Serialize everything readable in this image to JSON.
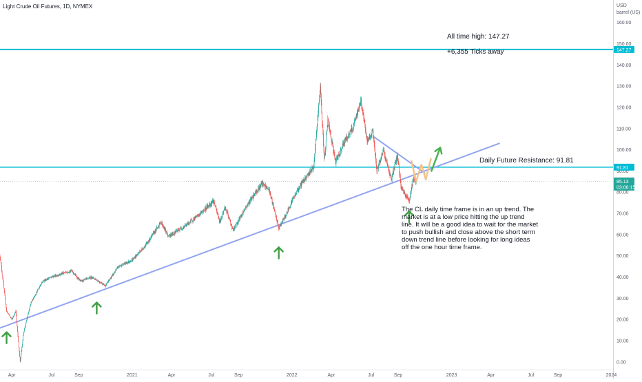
{
  "header": {
    "symbol_title": "Light Crude Oil Futures, 1D, NYMEX"
  },
  "price_axis": {
    "currency": "USD",
    "unit": "barrel (US)"
  },
  "chart_data": {
    "type": "candlestick",
    "title": "Light Crude Oil Futures, 1D, NYMEX",
    "xlabel": "",
    "ylabel": "",
    "ylim": [
      -2,
      168
    ],
    "xlim": [
      "2020-03-05",
      "2024-01-05"
    ],
    "y_ticks": [
      "0.00",
      "10.00",
      "20.00",
      "30.00",
      "40.00",
      "50.00",
      "60.00",
      "70.00",
      "80.00",
      "90.00",
      "100.00",
      "110.00",
      "120.00",
      "130.00",
      "140.00",
      "150.00",
      "160.00"
    ],
    "x_ticks": [
      {
        "date": "2020-04-01",
        "label": "Apr"
      },
      {
        "date": "2020-07-01",
        "label": "Jul"
      },
      {
        "date": "2020-09-01",
        "label": "Sep"
      },
      {
        "date": "2021-01-01",
        "label": "2021"
      },
      {
        "date": "2021-04-01",
        "label": "Apr"
      },
      {
        "date": "2021-07-01",
        "label": "Jul"
      },
      {
        "date": "2021-09-01",
        "label": "Sep"
      },
      {
        "date": "2022-01-01",
        "label": "2022"
      },
      {
        "date": "2022-04-01",
        "label": "Apr"
      },
      {
        "date": "2022-07-01",
        "label": "Jul"
      },
      {
        "date": "2022-09-01",
        "label": "Sep"
      },
      {
        "date": "2023-01-01",
        "label": "2023"
      },
      {
        "date": "2023-04-01",
        "label": "Apr"
      },
      {
        "date": "2023-07-01",
        "label": "Jul"
      },
      {
        "date": "2023-09-01",
        "label": "Sep"
      },
      {
        "date": "2024-01-01",
        "label": "2024"
      }
    ],
    "grid": false,
    "colors": {
      "up": "#26a69a",
      "down": "#ef5350",
      "wick": "#131722"
    },
    "price_path": [
      {
        "date": "2020-03-05",
        "price": 50
      },
      {
        "date": "2020-03-12",
        "price": 38
      },
      {
        "date": "2020-03-20",
        "price": 24
      },
      {
        "date": "2020-04-01",
        "price": 20
      },
      {
        "date": "2020-04-10",
        "price": 24
      },
      {
        "date": "2020-04-20",
        "price": 0
      },
      {
        "date": "2020-04-28",
        "price": 14
      },
      {
        "date": "2020-05-15",
        "price": 28
      },
      {
        "date": "2020-06-10",
        "price": 38
      },
      {
        "date": "2020-07-01",
        "price": 40
      },
      {
        "date": "2020-08-15",
        "price": 43
      },
      {
        "date": "2020-09-05",
        "price": 38
      },
      {
        "date": "2020-10-01",
        "price": 40
      },
      {
        "date": "2020-11-01",
        "price": 36
      },
      {
        "date": "2020-12-01",
        "price": 45
      },
      {
        "date": "2021-01-01",
        "price": 48
      },
      {
        "date": "2021-02-01",
        "price": 55
      },
      {
        "date": "2021-03-08",
        "price": 66
      },
      {
        "date": "2021-03-25",
        "price": 59
      },
      {
        "date": "2021-05-01",
        "price": 64
      },
      {
        "date": "2021-06-01",
        "price": 69
      },
      {
        "date": "2021-07-06",
        "price": 76
      },
      {
        "date": "2021-07-20",
        "price": 66
      },
      {
        "date": "2021-08-01",
        "price": 73
      },
      {
        "date": "2021-08-20",
        "price": 62
      },
      {
        "date": "2021-09-15",
        "price": 72
      },
      {
        "date": "2021-10-10",
        "price": 80
      },
      {
        "date": "2021-10-25",
        "price": 84
      },
      {
        "date": "2021-11-10",
        "price": 81
      },
      {
        "date": "2021-11-26",
        "price": 68
      },
      {
        "date": "2021-12-02",
        "price": 63
      },
      {
        "date": "2021-12-20",
        "price": 70
      },
      {
        "date": "2022-01-01",
        "price": 76
      },
      {
        "date": "2022-01-25",
        "price": 85
      },
      {
        "date": "2022-02-20",
        "price": 92
      },
      {
        "date": "2022-03-07",
        "price": 130
      },
      {
        "date": "2022-03-16",
        "price": 95
      },
      {
        "date": "2022-03-24",
        "price": 114
      },
      {
        "date": "2022-04-11",
        "price": 94
      },
      {
        "date": "2022-05-01",
        "price": 104
      },
      {
        "date": "2022-05-20",
        "price": 110
      },
      {
        "date": "2022-06-08",
        "price": 123
      },
      {
        "date": "2022-06-22",
        "price": 104
      },
      {
        "date": "2022-07-05",
        "price": 109
      },
      {
        "date": "2022-07-14",
        "price": 90
      },
      {
        "date": "2022-07-29",
        "price": 100
      },
      {
        "date": "2022-08-16",
        "price": 86
      },
      {
        "date": "2022-08-30",
        "price": 97
      },
      {
        "date": "2022-09-08",
        "price": 82
      },
      {
        "date": "2022-09-26",
        "price": 76
      },
      {
        "date": "2022-10-05",
        "price": 86
      },
      {
        "date": "2022-10-12",
        "price": 85.13
      }
    ],
    "current_price": {
      "value": 85.13,
      "label": "85.13",
      "timer": "03:06:15",
      "color": "#26a69a"
    },
    "horizontal_lines": [
      {
        "name": "All time high",
        "value": 147.27,
        "label": "147.27",
        "color": "#00bcd4"
      },
      {
        "name": "Daily Future Resistance",
        "value": 91.81,
        "label": "91.81",
        "color": "#00bcd4"
      }
    ],
    "trend_lines": [
      {
        "name": "long-term-uptrend",
        "start": {
          "date": "2020-03-05",
          "price": 16
        },
        "end": {
          "date": "2023-04-20",
          "price": 103
        },
        "color": "#90a4f0"
      },
      {
        "name": "short-term-downtrend",
        "start": {
          "date": "2022-07-08",
          "price": 106
        },
        "end": {
          "date": "2022-11-01",
          "price": 89
        },
        "color": "#90a4f0"
      }
    ],
    "projection_path": {
      "color": "#f5c28a",
      "points": [
        {
          "date": "2022-10-01",
          "price": 95
        },
        {
          "date": "2022-10-12",
          "price": 85
        },
        {
          "date": "2022-10-24",
          "price": 93
        },
        {
          "date": "2022-11-03",
          "price": 86
        },
        {
          "date": "2022-11-15",
          "price": 96
        }
      ]
    },
    "projection_arrow": {
      "color": "#4caf50",
      "from": {
        "date": "2022-11-16",
        "price": 90
      },
      "to": {
        "date": "2022-12-06",
        "price": 101
      }
    },
    "up_arrows": [
      {
        "date": "2020-03-20",
        "price": 14
      },
      {
        "date": "2020-10-12",
        "price": 28
      },
      {
        "date": "2021-12-02",
        "price": 54
      },
      {
        "date": "2022-09-26",
        "price": 71
      }
    ]
  },
  "annotations": {
    "ath_label": "All time high: 147.27",
    "ticks_away": "+6,355 Ticks away",
    "resistance_label": "Daily Future Resistance: 91.81",
    "analysis_lines": [
      "The CL daily time frame is in an up trend. The",
      "market is at a low price hitting the up trend",
      "line. It will be a good idea to wait for the market",
      "to push bullish and close above the short term",
      "down trend line before looking for long ideas",
      "off the one hour time frame."
    ]
  }
}
